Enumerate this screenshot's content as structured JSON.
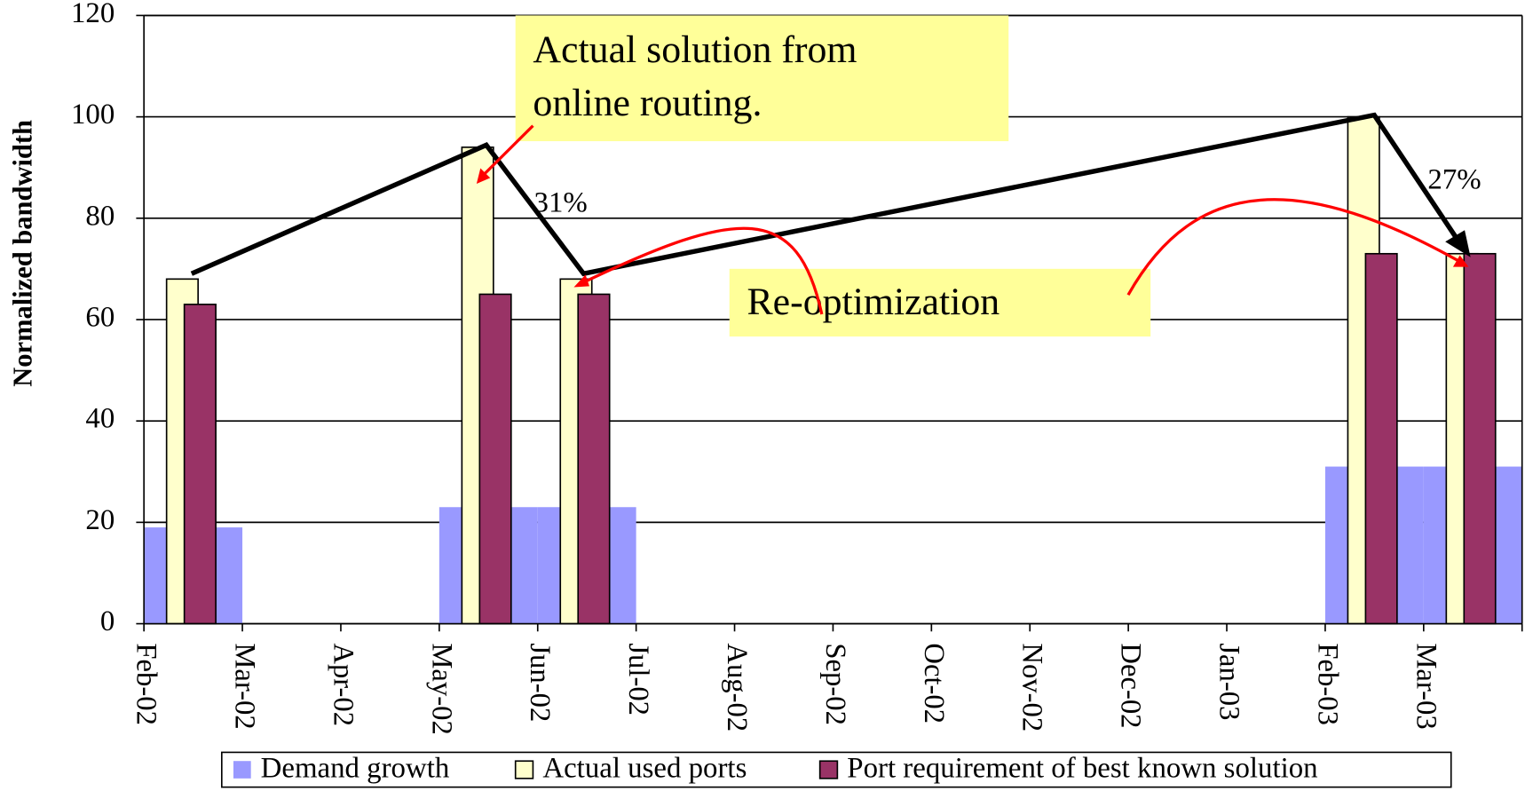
{
  "chart_data": {
    "type": "bar",
    "y_label": "Normalized bandwidth",
    "categories": [
      "Feb-02",
      "Mar-02",
      "Apr-02",
      "May-02",
      "Jun-02",
      "Jul-02",
      "Aug-02",
      "Sep-02",
      "Oct-02",
      "Nov-02",
      "Dec-02",
      "Jan-03",
      "Feb-03",
      "Mar-03"
    ],
    "series": [
      {
        "name": "Demand growth",
        "color": "#9999ff",
        "values": [
          19,
          null,
          null,
          23,
          23,
          null,
          null,
          null,
          null,
          null,
          null,
          null,
          31,
          31
        ]
      },
      {
        "name": "Actual used ports",
        "color": "#ffffcc",
        "values": [
          68,
          null,
          null,
          94,
          68,
          null,
          null,
          null,
          null,
          null,
          null,
          null,
          100,
          73
        ]
      },
      {
        "name": "Port requirement of best known solution",
        "color": "#993366",
        "values": [
          63,
          null,
          null,
          65,
          65,
          null,
          null,
          null,
          null,
          null,
          null,
          null,
          73,
          73
        ]
      }
    ],
    "ylim": [
      0,
      120
    ],
    "yticks": [
      0,
      20,
      40,
      60,
      80,
      100,
      120
    ],
    "grid": true,
    "legend": "bottom",
    "callout_lines": [
      "Actual solution from",
      "online routing."
    ],
    "annotations": [
      "Re-optimization",
      "31%",
      "27%"
    ]
  }
}
